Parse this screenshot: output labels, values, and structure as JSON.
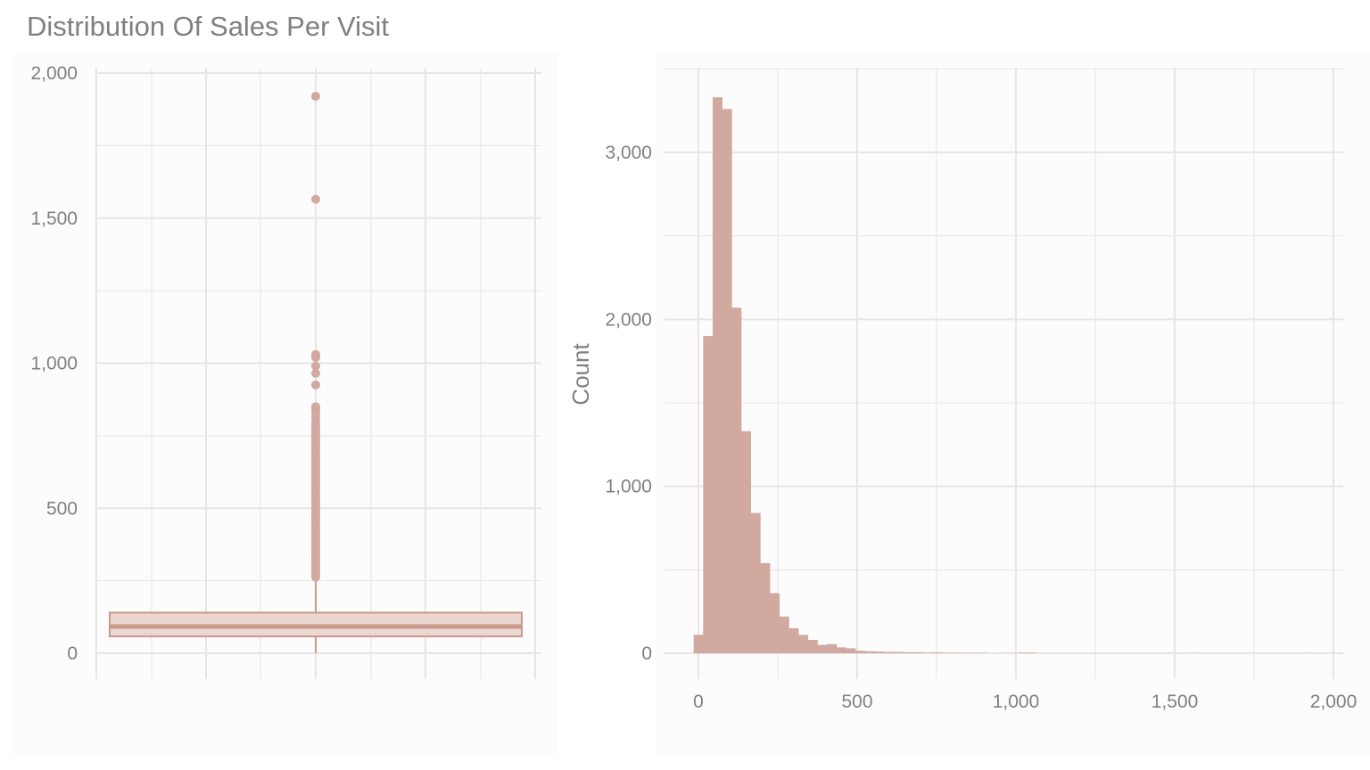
{
  "page": {
    "title": "Distribution Of Sales Per Visit"
  },
  "colors": {
    "background": "#ffffff",
    "panel": "#fcfcfc",
    "grid": "#e6e6e6",
    "fill": "#d1a99e",
    "box_fill": "#ead7d1",
    "stroke": "#c9998c",
    "text": "#808080"
  },
  "chart_data": [
    {
      "type": "box",
      "title": "Distribution Of Sales Per Visit",
      "xlabel": "",
      "ylabel": "",
      "ylim": [
        0,
        2000
      ],
      "yticks": [
        0,
        500,
        1000,
        1500,
        2000
      ],
      "ytick_labels": [
        "0",
        "500",
        "1,000",
        "1,500",
        "2,000"
      ],
      "grid": true,
      "box": {
        "lower_whisker": 0,
        "q1": 58,
        "median": 92,
        "q3": 140,
        "upper_whisker": 260
      },
      "outliers": [
        1920,
        1565,
        1030,
        1020,
        990,
        965,
        925,
        850,
        840,
        830,
        815,
        800,
        790,
        780,
        770,
        760,
        750,
        740,
        730,
        720,
        710,
        700,
        690,
        680,
        670,
        660,
        650,
        640,
        630,
        620,
        610,
        600,
        590,
        580,
        570,
        560,
        550,
        540,
        530,
        520,
        510,
        500,
        490,
        480,
        470,
        460,
        450,
        440,
        430,
        420,
        410,
        400,
        390,
        380,
        370,
        360,
        350,
        340,
        330,
        320,
        310,
        300,
        290,
        280,
        270,
        262
      ]
    },
    {
      "type": "histogram",
      "xlabel": "",
      "ylabel": "Count",
      "xlim": [
        -30,
        2010
      ],
      "ylim": [
        0,
        3400
      ],
      "xticks": [
        0,
        500,
        1000,
        1500,
        2000
      ],
      "xtick_labels": [
        "0",
        "500",
        "1,000",
        "1,500",
        "2,000"
      ],
      "yticks": [
        0,
        1000,
        2000,
        3000
      ],
      "ytick_labels": [
        "0",
        "1,000",
        "2,000",
        "3,000"
      ],
      "grid": true,
      "bin_width": 30,
      "bin_edges_start": -15,
      "counts": [
        110,
        1900,
        3330,
        3260,
        2070,
        1330,
        840,
        540,
        360,
        220,
        150,
        110,
        80,
        50,
        55,
        35,
        30,
        15,
        12,
        10,
        8,
        8,
        6,
        6,
        4,
        5,
        3,
        3,
        2,
        2,
        2,
        0,
        1,
        1,
        4,
        4,
        0,
        0,
        0,
        0,
        0,
        0,
        0,
        0,
        0,
        0,
        0,
        0,
        0,
        0,
        0,
        0,
        1,
        0,
        0,
        0,
        0,
        0,
        0,
        0,
        0,
        0,
        0,
        0,
        1
      ]
    }
  ]
}
